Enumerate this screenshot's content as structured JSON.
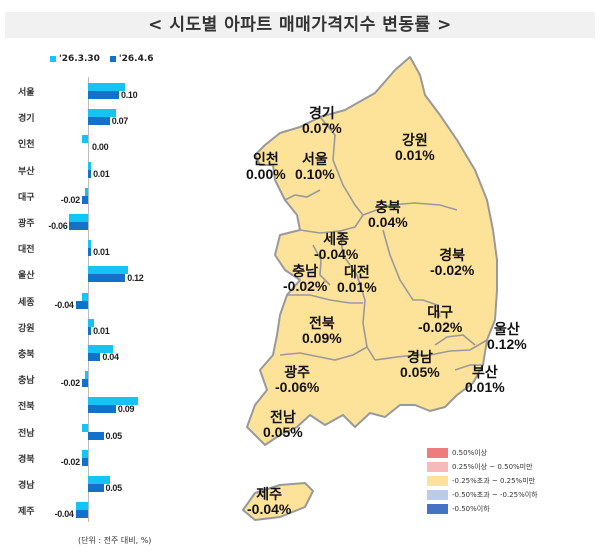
{
  "title": "< 시도별 아파트 매매가격지수 변동률 >",
  "legend": [
    {
      "label": "'26.3.30",
      "color": "#16c3f5"
    },
    {
      "label": "'26.4.6",
      "color": "#1272c9"
    }
  ],
  "unit_note": "(단위 : 전주 대비, %)",
  "chart_data": {
    "type": "bar",
    "orientation": "horizontal",
    "title": "시도별 아파트 매매가격지수 변동률",
    "xlabel": "전주 대비 (%)",
    "ylabel": "",
    "categories": [
      "서울",
      "경기",
      "인천",
      "부산",
      "대구",
      "광주",
      "대전",
      "울산",
      "세종",
      "강원",
      "충북",
      "충남",
      "전북",
      "전남",
      "경북",
      "경남",
      "제주"
    ],
    "series": [
      {
        "name": "'26.3.30",
        "color": "#16c3f5",
        "values": [
          0.12,
          0.09,
          -0.02,
          0.01,
          -0.01,
          -0.06,
          0.01,
          0.13,
          -0.02,
          0.02,
          0.08,
          -0.01,
          0.16,
          -0.02,
          -0.02,
          0.07,
          -0.04
        ]
      },
      {
        "name": "'26.4.6",
        "color": "#1272c9",
        "values": [
          0.1,
          0.07,
          0.0,
          0.01,
          -0.02,
          -0.06,
          0.01,
          0.12,
          -0.04,
          0.01,
          0.04,
          -0.02,
          0.09,
          0.05,
          -0.02,
          0.05,
          -0.04
        ]
      }
    ],
    "value_labels": [
      "0.10",
      "0.07",
      "0.00",
      "0.01",
      "-0.02",
      "-0.06",
      "0.01",
      "0.12",
      "-0.04",
      "0.01",
      "0.04",
      "-0.02",
      "0.09",
      "0.05",
      "-0.02",
      "0.05",
      "-0.04"
    ],
    "legend_position": "top",
    "grid": false
  },
  "map": {
    "regions": [
      {
        "name": "경기",
        "value": "0.07%"
      },
      {
        "name": "강원",
        "value": "0.01%"
      },
      {
        "name": "인천",
        "value": "0.00%"
      },
      {
        "name": "서울",
        "value": "0.10%"
      },
      {
        "name": "충북",
        "value": "0.04%"
      },
      {
        "name": "세종",
        "value": "-0.04%"
      },
      {
        "name": "경북",
        "value": "-0.02%"
      },
      {
        "name": "충남",
        "value": "-0.02%"
      },
      {
        "name": "대전",
        "value": "0.01%"
      },
      {
        "name": "전북",
        "value": "0.09%"
      },
      {
        "name": "대구",
        "value": "-0.02%"
      },
      {
        "name": "울산",
        "value": "0.12%"
      },
      {
        "name": "광주",
        "value": "-0.06%"
      },
      {
        "name": "경남",
        "value": "0.05%"
      },
      {
        "name": "부산",
        "value": "0.01%"
      },
      {
        "name": "전남",
        "value": "0.05%"
      },
      {
        "name": "제주",
        "value": "-0.04%"
      }
    ],
    "fill_color": "#fde29a",
    "border_color": "#999999",
    "legend": [
      {
        "label": "0.50%이상",
        "color": "#ee7b7e"
      },
      {
        "label": "0.25%이상 ~ 0.50%미만",
        "color": "#f7babc"
      },
      {
        "label": "-0.25%초과 ~ 0.25%미만",
        "color": "#fde29a"
      },
      {
        "label": "-0.50%초과 ~ -0.25%이하",
        "color": "#bccbe9"
      },
      {
        "label": "-0.50%이하",
        "color": "#4472c4"
      }
    ]
  }
}
